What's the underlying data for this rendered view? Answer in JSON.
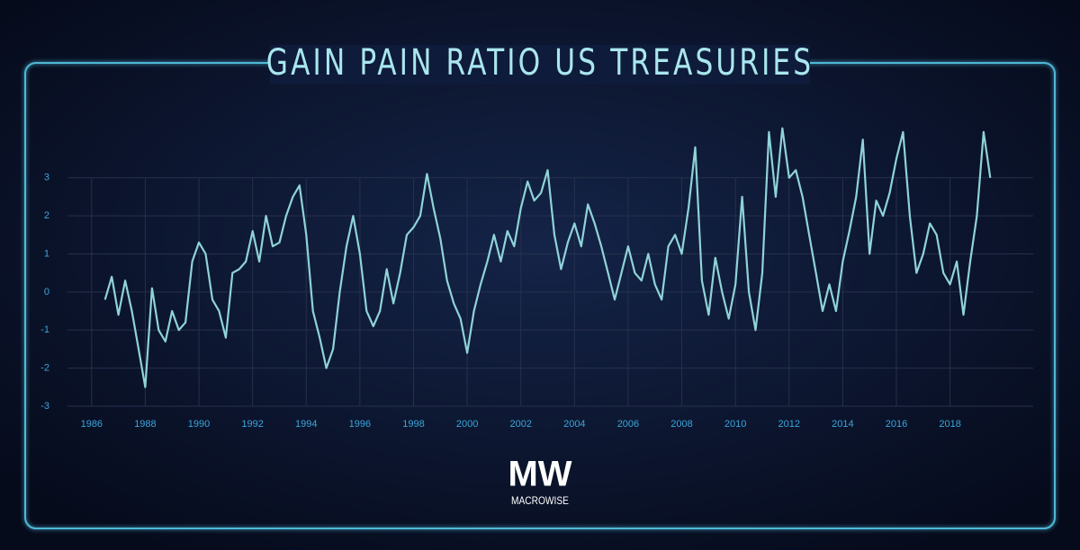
{
  "chart_data": {
    "type": "line",
    "title": "GAIN PAIN RATIO US TREASURIES",
    "x": [
      1986.5,
      1986.75,
      1987,
      1987.25,
      1987.5,
      1987.75,
      1988,
      1988.25,
      1988.5,
      1988.75,
      1989,
      1989.25,
      1989.5,
      1989.75,
      1990,
      1990.25,
      1990.5,
      1990.75,
      1991,
      1991.25,
      1991.5,
      1991.75,
      1992,
      1992.25,
      1992.5,
      1992.75,
      1993,
      1993.25,
      1993.5,
      1993.75,
      1994,
      1994.25,
      1994.5,
      1994.75,
      1995,
      1995.25,
      1995.5,
      1995.75,
      1996,
      1996.25,
      1996.5,
      1996.75,
      1997,
      1997.25,
      1997.5,
      1997.75,
      1998,
      1998.25,
      1998.5,
      1998.75,
      1999,
      1999.25,
      1999.5,
      1999.75,
      2000,
      2000.25,
      2000.5,
      2000.75,
      2001,
      2001.25,
      2001.5,
      2001.75,
      2002,
      2002.25,
      2002.5,
      2002.75,
      2003,
      2003.25,
      2003.5,
      2003.75,
      2004,
      2004.25,
      2004.5,
      2004.75,
      2005,
      2005.25,
      2005.5,
      2005.75,
      2006,
      2006.25,
      2006.5,
      2006.75,
      2007,
      2007.25,
      2007.5,
      2007.75,
      2008,
      2008.25,
      2008.5,
      2008.75,
      2009,
      2009.25,
      2009.5,
      2009.75,
      2010,
      2010.25,
      2010.5,
      2010.75,
      2011,
      2011.25,
      2011.5,
      2011.75,
      2012,
      2012.25,
      2012.5,
      2012.75,
      2013,
      2013.25,
      2013.5,
      2013.75,
      2014,
      2014.25,
      2014.5,
      2014.75,
      2015,
      2015.25,
      2015.5,
      2015.75,
      2016,
      2016.25,
      2016.5,
      2016.75,
      2017,
      2017.25,
      2017.5,
      2017.75,
      2018,
      2018.25,
      2018.5,
      2018.75,
      2019,
      2019.25,
      2019.5
    ],
    "values": [
      -0.2,
      0.4,
      -0.6,
      0.3,
      -0.5,
      -1.5,
      -2.5,
      0.1,
      -1.0,
      -1.3,
      -0.5,
      -1.0,
      -0.8,
      0.8,
      1.3,
      1.0,
      -0.2,
      -0.5,
      -1.2,
      0.5,
      0.6,
      0.8,
      1.6,
      0.8,
      2.0,
      1.2,
      1.3,
      2.0,
      2.5,
      2.8,
      1.5,
      -0.5,
      -1.2,
      -2.0,
      -1.5,
      0.0,
      1.2,
      2.0,
      1.0,
      -0.5,
      -0.9,
      -0.5,
      0.6,
      -0.3,
      0.5,
      1.5,
      1.7,
      2.0,
      3.1,
      2.2,
      1.4,
      0.3,
      -0.3,
      -0.7,
      -1.6,
      -0.5,
      0.2,
      0.8,
      1.5,
      0.8,
      1.6,
      1.2,
      2.2,
      2.9,
      2.4,
      2.6,
      3.2,
      1.5,
      0.6,
      1.3,
      1.8,
      1.2,
      2.3,
      1.8,
      1.2,
      0.5,
      -0.2,
      0.5,
      1.2,
      0.5,
      0.3,
      1.0,
      0.2,
      -0.2,
      1.2,
      1.5,
      1.0,
      2.2,
      3.8,
      0.3,
      -0.6,
      0.9,
      0.0,
      -0.7,
      0.2,
      2.5,
      0.0,
      -1.0,
      0.5,
      4.2,
      2.5,
      4.3,
      3.0,
      3.2,
      2.5,
      1.5,
      0.5,
      -0.5,
      0.2,
      -0.5,
      0.8,
      1.6,
      2.5,
      4.0,
      1.0,
      2.4,
      2.0,
      2.6,
      3.5,
      4.2,
      2.0,
      0.5,
      1.0,
      1.8,
      1.5,
      0.5,
      0.2,
      0.8,
      -0.6,
      0.8,
      2.0,
      4.2,
      3.0
    ],
    "color": "#8fd3d8",
    "xlim": [
      1985.1,
      2021.1
    ],
    "xticks": [
      1986,
      1988,
      1990,
      1992,
      1994,
      1996,
      1998,
      2000,
      2002,
      2004,
      2006,
      2008,
      2010,
      2012,
      2014,
      2016,
      2018
    ],
    "ylim": [
      -3,
      4.6
    ],
    "yticks": [
      -3,
      -2,
      -1,
      0,
      1,
      2,
      3
    ],
    "grid": true
  },
  "logo": {
    "mark": "MW",
    "name": "MACROWISE"
  }
}
